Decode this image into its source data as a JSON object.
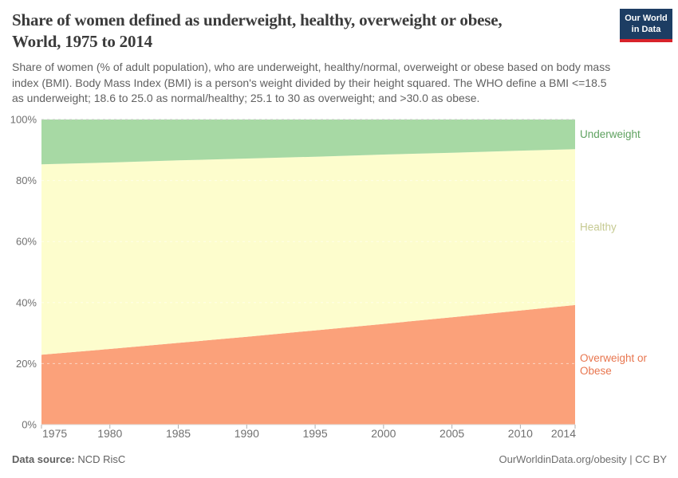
{
  "logo": {
    "line1": "Our World",
    "line2": "in Data"
  },
  "header": {
    "title_lines": [
      "Share of women defined as underweight, healthy, overweight or obese,",
      "World, 1975 to 2014"
    ],
    "subtitle": "Share of women (% of adult population), who are underweight, healthy/normal, overweight or obese based on body mass index (BMI). Body Mass Index (BMI) is a person's weight divided by their height squared. The WHO define a BMI <=18.5 as underweight; 18.6 to 25.0 as normal/healthy; 25.1 to 30 as overweight; and >30.0 as obese."
  },
  "chart_data": {
    "type": "area",
    "stacked": true,
    "title": "Share of women defined as underweight, healthy, overweight or obese, World, 1975 to 2014",
    "xlabel": "",
    "ylabel": "",
    "x": [
      1975,
      1980,
      1985,
      1990,
      1995,
      2000,
      2005,
      2010,
      2014
    ],
    "x_ticks": [
      1975,
      1980,
      1985,
      1990,
      1995,
      2000,
      2005,
      2010,
      2014
    ],
    "x_tick_labels": [
      "1975",
      "1980",
      "1985",
      "1990",
      "1995",
      "2000",
      "2005",
      "2010",
      "2014"
    ],
    "xlim": [
      1975,
      2014
    ],
    "y_ticks": [
      0,
      20,
      40,
      60,
      80,
      100
    ],
    "y_tick_labels": [
      "0%",
      "20%",
      "40%",
      "60%",
      "80%",
      "100%"
    ],
    "ylim": [
      0,
      100
    ],
    "grid": true,
    "legend_position": "right-inline",
    "series": [
      {
        "name": "Overweight or Obese",
        "label_lines": [
          "Overweight or",
          "Obese"
        ],
        "area_color": "#fba17a",
        "label_color": "#e8764f",
        "values": [
          22.9,
          24.8,
          26.8,
          28.8,
          30.9,
          33.0,
          35.2,
          37.4,
          39.2
        ]
      },
      {
        "name": "Healthy",
        "label_lines": [
          "Healthy"
        ],
        "area_color": "#fdfdcd",
        "label_color": "#c6ca92",
        "values": [
          62.4,
          61.1,
          59.8,
          58.4,
          56.9,
          55.5,
          53.9,
          52.4,
          51.1
        ]
      },
      {
        "name": "Underweight",
        "label_lines": [
          "Underweight"
        ],
        "area_color": "#a7d9a4",
        "label_color": "#5fa260",
        "values": [
          14.7,
          14.1,
          13.4,
          12.8,
          12.2,
          11.5,
          10.9,
          10.2,
          9.7
        ]
      }
    ],
    "colors": {
      "gridline_top": "#c9c9c9",
      "gridline_inner": "#ffffff",
      "axis_line": "#dedede",
      "tick_mark": "#b0b0b0",
      "tick_label": "#707070"
    }
  },
  "footer": {
    "source_label": "Data source:",
    "source_value": " NCD RisC",
    "right_text": "OurWorldinData.org/obesity | CC BY"
  }
}
